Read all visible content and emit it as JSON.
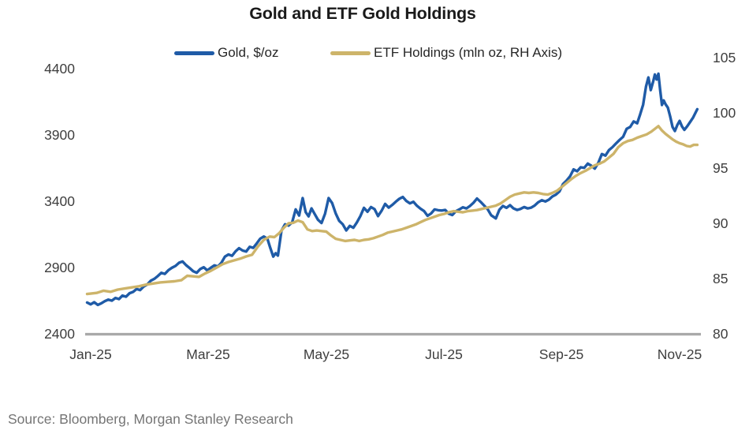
{
  "title": "Gold and ETF Gold Holdings",
  "source": "Source: Bloomberg, Morgan Stanley Research",
  "colors": {
    "gold_line": "#1f5ba7",
    "etf_line": "#cdb46a",
    "axis_line": "#a9a9a9",
    "title_text": "#1a1a1a",
    "tick_text": "#3e3e3e",
    "source_text": "#757575",
    "background": "#ffffff"
  },
  "chart_data": {
    "type": "line",
    "title": "Gold and ETF Gold Holdings",
    "grid": "off",
    "legend_position": "top-center",
    "x_axis": {
      "unit": "month index, 0 = Jan-25 tick, 10 = Nov-25 tick",
      "ticks": [
        "Jan-25",
        "Mar-25",
        "May-25",
        "Jul-25",
        "Sep-25",
        "Nov-25"
      ],
      "range": [
        -0.1,
        10.35
      ]
    },
    "y_axis_left": {
      "label": "Gold, $/oz",
      "tick_labels": [
        "4400",
        "3900",
        "3400",
        "2900",
        "2400"
      ],
      "range": [
        2400,
        4400
      ]
    },
    "y_axis_right": {
      "label": "ETF Holdings (mln oz)",
      "tick_labels": [
        "105",
        "100",
        "95",
        "90",
        "85",
        "80"
      ],
      "range": [
        80,
        105
      ]
    },
    "series": [
      {
        "name": "Gold, $/oz",
        "axis": "left",
        "color": "#1f5ba7",
        "data_name": "gold-price-line",
        "points": [
          [
            -0.06,
            2636
          ],
          [
            0.0,
            2622
          ],
          [
            0.06,
            2638
          ],
          [
            0.12,
            2618
          ],
          [
            0.18,
            2630
          ],
          [
            0.24,
            2646
          ],
          [
            0.3,
            2658
          ],
          [
            0.36,
            2650
          ],
          [
            0.42,
            2670
          ],
          [
            0.48,
            2662
          ],
          [
            0.54,
            2688
          ],
          [
            0.6,
            2680
          ],
          [
            0.66,
            2706
          ],
          [
            0.72,
            2716
          ],
          [
            0.78,
            2738
          ],
          [
            0.84,
            2730
          ],
          [
            0.9,
            2756
          ],
          [
            0.96,
            2772
          ],
          [
            1.02,
            2800
          ],
          [
            1.08,
            2814
          ],
          [
            1.14,
            2836
          ],
          [
            1.2,
            2860
          ],
          [
            1.26,
            2852
          ],
          [
            1.32,
            2880
          ],
          [
            1.38,
            2898
          ],
          [
            1.44,
            2912
          ],
          [
            1.5,
            2936
          ],
          [
            1.56,
            2946
          ],
          [
            1.62,
            2918
          ],
          [
            1.68,
            2896
          ],
          [
            1.74,
            2872
          ],
          [
            1.8,
            2860
          ],
          [
            1.86,
            2888
          ],
          [
            1.92,
            2902
          ],
          [
            1.98,
            2878
          ],
          [
            2.04,
            2898
          ],
          [
            2.1,
            2916
          ],
          [
            2.16,
            2908
          ],
          [
            2.22,
            2936
          ],
          [
            2.28,
            2982
          ],
          [
            2.34,
            2998
          ],
          [
            2.4,
            2988
          ],
          [
            2.46,
            3022
          ],
          [
            2.52,
            3046
          ],
          [
            2.58,
            3028
          ],
          [
            2.64,
            3020
          ],
          [
            2.7,
            3056
          ],
          [
            2.76,
            3048
          ],
          [
            2.82,
            3082
          ],
          [
            2.88,
            3118
          ],
          [
            2.94,
            3134
          ],
          [
            3.0,
            3118
          ],
          [
            3.05,
            3048
          ],
          [
            3.1,
            2982
          ],
          [
            3.14,
            3008
          ],
          [
            3.18,
            2990
          ],
          [
            3.24,
            3178
          ],
          [
            3.3,
            3226
          ],
          [
            3.36,
            3216
          ],
          [
            3.42,
            3240
          ],
          [
            3.48,
            3338
          ],
          [
            3.54,
            3292
          ],
          [
            3.6,
            3424
          ],
          [
            3.65,
            3318
          ],
          [
            3.7,
            3286
          ],
          [
            3.75,
            3346
          ],
          [
            3.8,
            3306
          ],
          [
            3.86,
            3260
          ],
          [
            3.92,
            3236
          ],
          [
            3.98,
            3306
          ],
          [
            4.04,
            3424
          ],
          [
            4.1,
            3386
          ],
          [
            4.16,
            3308
          ],
          [
            4.22,
            3252
          ],
          [
            4.28,
            3226
          ],
          [
            4.34,
            3180
          ],
          [
            4.4,
            3214
          ],
          [
            4.46,
            3200
          ],
          [
            4.52,
            3240
          ],
          [
            4.58,
            3288
          ],
          [
            4.64,
            3350
          ],
          [
            4.7,
            3320
          ],
          [
            4.76,
            3356
          ],
          [
            4.82,
            3340
          ],
          [
            4.88,
            3288
          ],
          [
            4.94,
            3328
          ],
          [
            5.0,
            3380
          ],
          [
            5.06,
            3352
          ],
          [
            5.12,
            3372
          ],
          [
            5.18,
            3396
          ],
          [
            5.24,
            3418
          ],
          [
            5.3,
            3432
          ],
          [
            5.36,
            3402
          ],
          [
            5.42,
            3384
          ],
          [
            5.48,
            3396
          ],
          [
            5.54,
            3366
          ],
          [
            5.6,
            3344
          ],
          [
            5.66,
            3326
          ],
          [
            5.72,
            3290
          ],
          [
            5.78,
            3308
          ],
          [
            5.84,
            3338
          ],
          [
            5.9,
            3332
          ],
          [
            5.96,
            3330
          ],
          [
            6.02,
            3334
          ],
          [
            6.08,
            3306
          ],
          [
            6.14,
            3296
          ],
          [
            6.2,
            3324
          ],
          [
            6.26,
            3338
          ],
          [
            6.32,
            3354
          ],
          [
            6.38,
            3346
          ],
          [
            6.44,
            3364
          ],
          [
            6.5,
            3388
          ],
          [
            6.56,
            3420
          ],
          [
            6.62,
            3396
          ],
          [
            6.68,
            3368
          ],
          [
            6.74,
            3340
          ],
          [
            6.8,
            3294
          ],
          [
            6.88,
            3270
          ],
          [
            6.94,
            3336
          ],
          [
            7.0,
            3364
          ],
          [
            7.06,
            3350
          ],
          [
            7.12,
            3370
          ],
          [
            7.18,
            3346
          ],
          [
            7.24,
            3334
          ],
          [
            7.3,
            3342
          ],
          [
            7.36,
            3356
          ],
          [
            7.42,
            3346
          ],
          [
            7.48,
            3352
          ],
          [
            7.54,
            3368
          ],
          [
            7.6,
            3392
          ],
          [
            7.66,
            3408
          ],
          [
            7.72,
            3398
          ],
          [
            7.78,
            3412
          ],
          [
            7.84,
            3436
          ],
          [
            7.9,
            3450
          ],
          [
            7.96,
            3474
          ],
          [
            8.02,
            3530
          ],
          [
            8.08,
            3556
          ],
          [
            8.14,
            3588
          ],
          [
            8.2,
            3640
          ],
          [
            8.26,
            3626
          ],
          [
            8.32,
            3656
          ],
          [
            8.38,
            3652
          ],
          [
            8.44,
            3684
          ],
          [
            8.5,
            3668
          ],
          [
            8.56,
            3646
          ],
          [
            8.62,
            3690
          ],
          [
            8.68,
            3756
          ],
          [
            8.74,
            3744
          ],
          [
            8.8,
            3786
          ],
          [
            8.86,
            3808
          ],
          [
            8.92,
            3836
          ],
          [
            8.98,
            3862
          ],
          [
            9.04,
            3886
          ],
          [
            9.1,
            3946
          ],
          [
            9.16,
            3960
          ],
          [
            9.22,
            4002
          ],
          [
            9.28,
            3988
          ],
          [
            9.33,
            4056
          ],
          [
            9.38,
            4128
          ],
          [
            9.43,
            4266
          ],
          [
            9.47,
            4334
          ],
          [
            9.51,
            4238
          ],
          [
            9.55,
            4302
          ],
          [
            9.58,
            4356
          ],
          [
            9.61,
            4318
          ],
          [
            9.64,
            4362
          ],
          [
            9.67,
            4240
          ],
          [
            9.7,
            4126
          ],
          [
            9.73,
            4160
          ],
          [
            9.76,
            4132
          ],
          [
            9.8,
            4106
          ],
          [
            9.84,
            4040
          ],
          [
            9.88,
            3960
          ],
          [
            9.92,
            3930
          ],
          [
            9.96,
            3974
          ],
          [
            10.0,
            4006
          ],
          [
            10.04,
            3964
          ],
          [
            10.08,
            3938
          ],
          [
            10.13,
            3966
          ],
          [
            10.18,
            3998
          ],
          [
            10.23,
            4032
          ],
          [
            10.3,
            4094
          ]
        ]
      },
      {
        "name": "ETF Holdings (mln oz, RH Axis)",
        "axis": "right",
        "color": "#cdb46a",
        "data_name": "etf-holdings-line",
        "points": [
          [
            -0.06,
            83.6
          ],
          [
            0.1,
            83.7
          ],
          [
            0.22,
            83.9
          ],
          [
            0.34,
            83.8
          ],
          [
            0.46,
            84.0
          ],
          [
            0.58,
            84.1
          ],
          [
            0.7,
            84.2
          ],
          [
            0.82,
            84.3
          ],
          [
            0.94,
            84.45
          ],
          [
            1.06,
            84.55
          ],
          [
            1.18,
            84.65
          ],
          [
            1.3,
            84.7
          ],
          [
            1.42,
            84.75
          ],
          [
            1.54,
            84.85
          ],
          [
            1.64,
            85.25
          ],
          [
            1.74,
            85.2
          ],
          [
            1.84,
            85.15
          ],
          [
            1.94,
            85.45
          ],
          [
            2.04,
            85.7
          ],
          [
            2.14,
            86.0
          ],
          [
            2.24,
            86.3
          ],
          [
            2.34,
            86.5
          ],
          [
            2.44,
            86.65
          ],
          [
            2.54,
            86.8
          ],
          [
            2.64,
            87.0
          ],
          [
            2.74,
            87.15
          ],
          [
            2.84,
            87.9
          ],
          [
            2.94,
            88.5
          ],
          [
            3.04,
            88.8
          ],
          [
            3.12,
            88.75
          ],
          [
            3.2,
            89.1
          ],
          [
            3.28,
            89.6
          ],
          [
            3.36,
            90.0
          ],
          [
            3.44,
            90.05
          ],
          [
            3.52,
            90.25
          ],
          [
            3.6,
            90.1
          ],
          [
            3.68,
            89.45
          ],
          [
            3.76,
            89.3
          ],
          [
            3.84,
            89.35
          ],
          [
            3.92,
            89.3
          ],
          [
            4.0,
            89.25
          ],
          [
            4.08,
            88.9
          ],
          [
            4.16,
            88.6
          ],
          [
            4.24,
            88.5
          ],
          [
            4.32,
            88.4
          ],
          [
            4.4,
            88.45
          ],
          [
            4.48,
            88.5
          ],
          [
            4.56,
            88.4
          ],
          [
            4.64,
            88.5
          ],
          [
            4.72,
            88.55
          ],
          [
            4.8,
            88.65
          ],
          [
            4.88,
            88.8
          ],
          [
            4.96,
            88.95
          ],
          [
            5.04,
            89.15
          ],
          [
            5.12,
            89.25
          ],
          [
            5.2,
            89.35
          ],
          [
            5.28,
            89.45
          ],
          [
            5.36,
            89.6
          ],
          [
            5.44,
            89.75
          ],
          [
            5.52,
            89.9
          ],
          [
            5.6,
            90.1
          ],
          [
            5.68,
            90.3
          ],
          [
            5.76,
            90.45
          ],
          [
            5.84,
            90.6
          ],
          [
            5.92,
            90.75
          ],
          [
            6.0,
            90.85
          ],
          [
            6.08,
            91.0
          ],
          [
            6.16,
            91.1
          ],
          [
            6.24,
            91.05
          ],
          [
            6.32,
            91.0
          ],
          [
            6.4,
            91.1
          ],
          [
            6.48,
            91.15
          ],
          [
            6.56,
            91.2
          ],
          [
            6.64,
            91.3
          ],
          [
            6.72,
            91.4
          ],
          [
            6.8,
            91.5
          ],
          [
            6.88,
            91.6
          ],
          [
            6.96,
            91.8
          ],
          [
            7.04,
            92.1
          ],
          [
            7.12,
            92.4
          ],
          [
            7.2,
            92.6
          ],
          [
            7.28,
            92.7
          ],
          [
            7.36,
            92.8
          ],
          [
            7.44,
            92.75
          ],
          [
            7.52,
            92.8
          ],
          [
            7.6,
            92.75
          ],
          [
            7.68,
            92.65
          ],
          [
            7.76,
            92.6
          ],
          [
            7.84,
            92.75
          ],
          [
            7.92,
            92.95
          ],
          [
            8.0,
            93.3
          ],
          [
            8.08,
            93.65
          ],
          [
            8.16,
            94.0
          ],
          [
            8.24,
            94.3
          ],
          [
            8.32,
            94.55
          ],
          [
            8.4,
            94.75
          ],
          [
            8.48,
            95.0
          ],
          [
            8.56,
            95.25
          ],
          [
            8.64,
            95.4
          ],
          [
            8.72,
            95.6
          ],
          [
            8.8,
            95.95
          ],
          [
            8.88,
            96.3
          ],
          [
            8.96,
            96.9
          ],
          [
            9.04,
            97.25
          ],
          [
            9.12,
            97.45
          ],
          [
            9.2,
            97.55
          ],
          [
            9.28,
            97.75
          ],
          [
            9.36,
            97.9
          ],
          [
            9.44,
            98.05
          ],
          [
            9.52,
            98.3
          ],
          [
            9.58,
            98.55
          ],
          [
            9.64,
            98.8
          ],
          [
            9.7,
            98.4
          ],
          [
            9.76,
            98.1
          ],
          [
            9.82,
            97.85
          ],
          [
            9.88,
            97.6
          ],
          [
            9.94,
            97.4
          ],
          [
            10.0,
            97.25
          ],
          [
            10.06,
            97.15
          ],
          [
            10.12,
            97.0
          ],
          [
            10.18,
            96.95
          ],
          [
            10.24,
            97.1
          ],
          [
            10.3,
            97.1
          ]
        ]
      }
    ]
  }
}
